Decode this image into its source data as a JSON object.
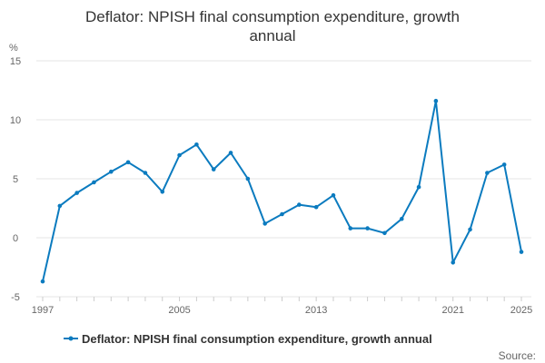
{
  "colors": {
    "series": "#0b7bbf",
    "grid": "#e6e6e6",
    "axis": "#cccccc",
    "text": "#333333",
    "muted": "#666666"
  },
  "chart_data": {
    "type": "line",
    "title_line1": "Deflator: NPISH final consumption expenditure, growth",
    "title_line2": "annual",
    "ylabel": "%",
    "ylim": [
      -5,
      15
    ],
    "yticks": [
      -5,
      0,
      5,
      10,
      15
    ],
    "xlim": [
      1997,
      2025
    ],
    "xtick_labels": [
      "1997",
      "2005",
      "2013",
      "2021",
      "2025"
    ],
    "x": [
      1997,
      1998,
      1999,
      2000,
      2001,
      2002,
      2003,
      2004,
      2005,
      2006,
      2007,
      2008,
      2009,
      2010,
      2011,
      2012,
      2013,
      2014,
      2015,
      2016,
      2017,
      2018,
      2019,
      2020,
      2021,
      2022,
      2023,
      2024,
      2025
    ],
    "series": [
      {
        "name": "Deflator: NPISH final consumption expenditure, growth annual",
        "values": [
          -3.7,
          2.7,
          3.8,
          4.7,
          5.6,
          6.4,
          5.5,
          3.9,
          7.0,
          7.9,
          5.8,
          7.2,
          5.0,
          1.2,
          2.0,
          2.8,
          2.6,
          3.6,
          0.8,
          0.8,
          0.4,
          1.6,
          4.3,
          11.6,
          -2.1,
          0.7,
          5.5,
          6.2,
          -1.2
        ]
      }
    ],
    "grid": true,
    "legend_position": "bottom",
    "source_label": "Source:"
  }
}
